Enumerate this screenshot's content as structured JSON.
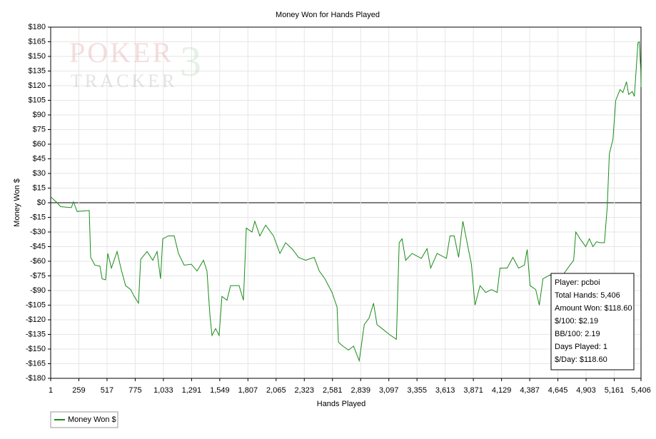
{
  "chart_data": {
    "type": "line",
    "title": "Money Won for Hands Played",
    "x_label": "Hands Played",
    "y_label": "Money Won $",
    "watermark": {
      "line1": "POKER",
      "line2": "TRACKER",
      "mark": "3"
    },
    "info_box": [
      "Player: pcboi",
      "Total Hands: 5,406",
      "Amount Won: $118.60",
      "$/100: $2.19",
      "BB/100: 2.19",
      "Days Played: 1",
      "$/Day: $118.60"
    ],
    "grid": true,
    "legend": "bottom-left",
    "xlim": [
      1,
      5406
    ],
    "ylim": [
      -180,
      180
    ],
    "xticks": [
      1,
      259,
      517,
      775,
      {
        "value": 1033,
        "label": "1,033"
      },
      {
        "value": 1291,
        "label": "1,291"
      },
      {
        "value": 1549,
        "label": "1,549"
      },
      {
        "value": 1807,
        "label": "1,807"
      },
      {
        "value": 2065,
        "label": "2,065"
      },
      {
        "value": 2323,
        "label": "2,323"
      },
      {
        "value": 2581,
        "label": "2,581"
      },
      {
        "value": 2839,
        "label": "2,839"
      },
      {
        "value": 3097,
        "label": "3,097"
      },
      {
        "value": 3355,
        "label": "3,355"
      },
      {
        "value": 3613,
        "label": "3,613"
      },
      {
        "value": 3871,
        "label": "3,871"
      },
      {
        "value": 4129,
        "label": "4,129"
      },
      {
        "value": 4387,
        "label": "4,387"
      },
      {
        "value": 4645,
        "label": "4,645"
      },
      {
        "value": 4903,
        "label": "4,903"
      },
      {
        "value": 5161,
        "label": "5,161"
      },
      {
        "value": 5406,
        "label": "5,406"
      }
    ],
    "yticks": [
      {
        "value": 180,
        "label": "$180"
      },
      {
        "value": 165,
        "label": "$165"
      },
      {
        "value": 150,
        "label": "$150"
      },
      {
        "value": 135,
        "label": "$135"
      },
      {
        "value": 120,
        "label": "$120"
      },
      {
        "value": 105,
        "label": "$105"
      },
      {
        "value": 90,
        "label": "$90"
      },
      {
        "value": 75,
        "label": "$75"
      },
      {
        "value": 60,
        "label": "$60"
      },
      {
        "value": 45,
        "label": "$45"
      },
      {
        "value": 30,
        "label": "$30"
      },
      {
        "value": 15,
        "label": "$15"
      },
      {
        "value": 0,
        "label": "$0"
      },
      {
        "value": -15,
        "label": "-$15"
      },
      {
        "value": -30,
        "label": "-$30"
      },
      {
        "value": -45,
        "label": "-$45"
      },
      {
        "value": -60,
        "label": "-$60"
      },
      {
        "value": -75,
        "label": "-$75"
      },
      {
        "value": -90,
        "label": "-$90"
      },
      {
        "value": -105,
        "label": "-$105"
      },
      {
        "value": -120,
        "label": "-$120"
      },
      {
        "value": -135,
        "label": "-$135"
      },
      {
        "value": -150,
        "label": "-$150"
      },
      {
        "value": -165,
        "label": "-$165"
      },
      {
        "value": -180,
        "label": "-$180"
      }
    ],
    "x": [
      1,
      60,
      92,
      190,
      210,
      243,
      354,
      367,
      406,
      452,
      472,
      504,
      524,
      557,
      609,
      648,
      687,
      733,
      766,
      805,
      825,
      883,
      936,
      975,
      1007,
      1027,
      1079,
      1132,
      1171,
      1223,
      1288,
      1341,
      1400,
      1432,
      1458,
      1478,
      1511,
      1543,
      1569,
      1615,
      1648,
      1726,
      1766,
      1792,
      1844,
      1870,
      1916,
      1969,
      2041,
      2100,
      2152,
      2217,
      2270,
      2335,
      2414,
      2460,
      2512,
      2577,
      2623,
      2636,
      2676,
      2728,
      2774,
      2826,
      2872,
      2917,
      2957,
      2989,
      3035,
      3101,
      3166,
      3192,
      3218,
      3251,
      3310,
      3395,
      3447,
      3480,
      3539,
      3624,
      3657,
      3696,
      3736,
      3775,
      3821,
      3853,
      3886,
      3932,
      3984,
      4037,
      4089,
      4115,
      4180,
      4233,
      4285,
      4338,
      4364,
      4390,
      4442,
      4475,
      4508,
      4573,
      4639,
      4704,
      4756,
      4789,
      4809,
      4848,
      4900,
      4933,
      4966,
      4998,
      5031,
      5071,
      5097,
      5116,
      5149,
      5175,
      5214,
      5240,
      5273,
      5293,
      5326,
      5345,
      5365,
      5378,
      5391,
      5404,
      5406
    ],
    "series": [
      {
        "name": "Money Won $",
        "color": "#1a8c1a",
        "values": [
          6,
          0,
          -4,
          -5,
          1,
          -9,
          -8,
          -56,
          -64,
          -65,
          -78,
          -79,
          -52,
          -67,
          -50,
          -69,
          -85,
          -89,
          -96,
          -103,
          -58,
          -50,
          -59,
          -50,
          -78,
          -37,
          -34,
          -34,
          -52,
          -64,
          -63,
          -70,
          -59,
          -70,
          -114,
          -136,
          -129,
          -136,
          -96,
          -100,
          -85,
          -85,
          -100,
          -26,
          -30,
          -19,
          -34,
          -23,
          -34,
          -52,
          -41,
          -48,
          -56,
          -59,
          -56,
          -70,
          -78,
          -92,
          -107,
          -143,
          -147,
          -151,
          -147,
          -162,
          -125,
          -118,
          -103,
          -125,
          -129,
          -135,
          -140,
          -41,
          -37,
          -59,
          -52,
          -57,
          -47,
          -67,
          -52,
          -57,
          -34,
          -34,
          -56,
          -19,
          -45,
          -63,
          -105,
          -85,
          -92,
          -89,
          -92,
          -67,
          -67,
          -56,
          -67,
          -64,
          -48,
          -85,
          -89,
          -105,
          -78,
          -74,
          -81,
          -72,
          -64,
          -59,
          -30,
          -37,
          -45,
          -37,
          -45,
          -40,
          -41,
          -41,
          -4,
          50,
          65,
          105,
          116,
          113,
          124,
          111,
          114,
          109,
          142,
          164,
          165,
          135,
          118.6
        ]
      }
    ]
  }
}
